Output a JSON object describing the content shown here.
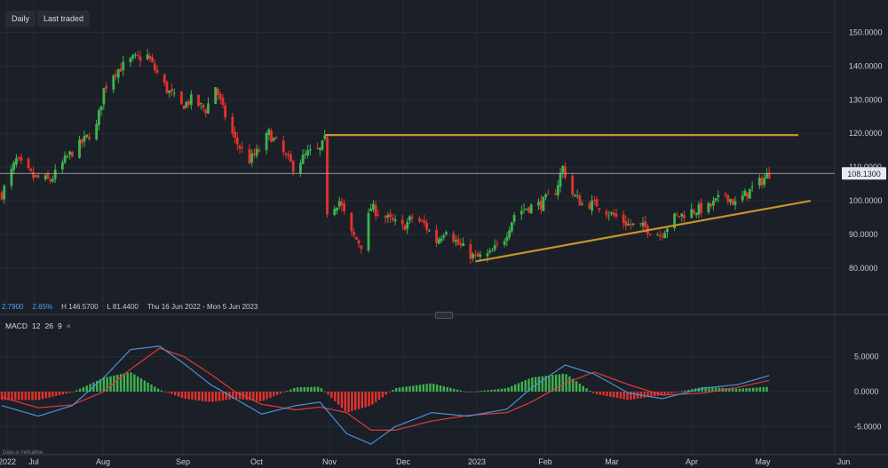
{
  "toolbar": {
    "interval": "Daily",
    "price_mode": "Last traded"
  },
  "info": {
    "change": "2.7900",
    "change_pct": "2.65%",
    "high": "H 146.5700",
    "low": "L 81.4400",
    "range": "Thu 16 Jun 2022 - Mon 5 Jun 2023"
  },
  "macd": {
    "label": "MACD",
    "fast": "12",
    "slow": "26",
    "signal": "9"
  },
  "disclaimer": "Data is indicative",
  "colors": {
    "background": "#1b1f27",
    "up": "#3fb34f",
    "down": "#e5322d",
    "trendline": "#c8922c",
    "macd_line": "#4a90d9",
    "signal_line": "#e0393e"
  },
  "chart_data": [
    {
      "type": "candlestick",
      "title": "",
      "x_ticks": [
        "2022",
        "Jul",
        "Aug",
        "Sep",
        "Oct",
        "Nov",
        "Dec",
        "2023",
        "Feb",
        "Mar",
        "Apr",
        "May",
        "Jun"
      ],
      "y_ticks": [
        "150.0000",
        "140.0000",
        "130.0000",
        "120.0000",
        "110.0000",
        "100.0000",
        "90.0000",
        "80.0000"
      ],
      "ylim": [
        70,
        158
      ],
      "last_price": "108.1300",
      "high": 146.57,
      "low": 81.44,
      "close_path": [
        [
          "2022-06-16",
          102
        ],
        [
          "2022-06-22",
          112
        ],
        [
          "2022-06-29",
          107
        ],
        [
          "2022-07-06",
          106
        ],
        [
          "2022-07-13",
          113
        ],
        [
          "2022-07-20",
          118
        ],
        [
          "2022-07-25",
          122
        ],
        [
          "2022-07-28",
          133
        ],
        [
          "2022-08-01",
          138
        ],
        [
          "2022-08-05",
          140
        ],
        [
          "2022-08-09",
          142
        ],
        [
          "2022-08-15",
          143
        ],
        [
          "2022-08-18",
          139
        ],
        [
          "2022-08-23",
          133
        ],
        [
          "2022-08-29",
          128
        ],
        [
          "2022-09-02",
          130
        ],
        [
          "2022-09-08",
          127
        ],
        [
          "2022-09-12",
          134
        ],
        [
          "2022-09-15",
          127
        ],
        [
          "2022-09-20",
          118
        ],
        [
          "2022-09-26",
          112
        ],
        [
          "2022-09-30",
          115
        ],
        [
          "2022-10-04",
          120
        ],
        [
          "2022-10-10",
          114
        ],
        [
          "2022-10-14",
          110
        ],
        [
          "2022-10-20",
          114
        ],
        [
          "2022-10-25",
          115
        ],
        [
          "2022-10-27",
          118
        ],
        [
          "2022-10-28",
          97
        ],
        [
          "2022-11-02",
          100
        ],
        [
          "2022-11-07",
          90
        ],
        [
          "2022-11-11",
          87
        ],
        [
          "2022-11-15",
          98
        ],
        [
          "2022-11-21",
          95
        ],
        [
          "2022-11-28",
          92
        ],
        [
          "2022-12-02",
          95
        ],
        [
          "2022-12-07",
          93
        ],
        [
          "2022-12-12",
          88
        ],
        [
          "2022-12-16",
          92
        ],
        [
          "2022-12-21",
          87
        ],
        [
          "2022-12-28",
          83
        ],
        [
          "2023-01-03",
          84
        ],
        [
          "2023-01-09",
          89
        ],
        [
          "2023-01-13",
          96
        ],
        [
          "2023-01-18",
          98
        ],
        [
          "2023-01-24",
          99
        ],
        [
          "2023-01-30",
          103
        ],
        [
          "2023-02-02",
          110
        ],
        [
          "2023-02-06",
          102
        ],
        [
          "2023-02-10",
          99
        ],
        [
          "2023-02-16",
          99
        ],
        [
          "2023-02-22",
          96
        ],
        [
          "2023-03-01",
          93
        ],
        [
          "2023-03-08",
          92
        ],
        [
          "2023-03-14",
          90
        ],
        [
          "2023-03-20",
          95
        ],
        [
          "2023-03-27",
          97
        ],
        [
          "2023-04-03",
          98
        ],
        [
          "2023-04-10",
          102
        ],
        [
          "2023-04-14",
          99
        ],
        [
          "2023-04-20",
          103
        ],
        [
          "2023-04-25",
          106
        ],
        [
          "2023-04-28",
          108.13
        ]
      ],
      "annotations": [
        {
          "kind": "horizontal resistance",
          "from": "2022-10-27",
          "to": "2023-05-10",
          "value": 119.5
        },
        {
          "kind": "rising support",
          "from": "2022-12-28",
          "to": "2023-05-15",
          "start_value": 82,
          "end_value": 100
        }
      ]
    },
    {
      "type": "macd",
      "title": "",
      "x_ticks": [
        "2022",
        "Jul",
        "Aug",
        "Sep",
        "Oct",
        "Nov",
        "Dec",
        "2023",
        "Feb",
        "Mar",
        "Apr",
        "May",
        "Jun"
      ],
      "y_ticks": [
        "5.0000",
        "0.0000",
        "-5.0000"
      ],
      "ylim": [
        -8.5,
        8.5
      ],
      "series": [
        {
          "points": [
            [
              "2022-06-16",
              -2.0
            ],
            [
              "2022-07-01",
              -3.5
            ],
            [
              "2022-07-15",
              -2.0
            ],
            [
              "2022-07-28",
              2.0
            ],
            [
              "2022-08-08",
              6.0
            ],
            [
              "2022-08-20",
              6.5
            ],
            [
              "2022-08-30",
              4.0
            ],
            [
              "2022-09-10",
              1.0
            ],
            [
              "2022-09-20",
              -1.0
            ],
            [
              "2022-10-01",
              -3.2
            ],
            [
              "2022-10-15",
              -2.0
            ],
            [
              "2022-10-25",
              -1.5
            ],
            [
              "2022-11-05",
              -6.0
            ],
            [
              "2022-11-15",
              -7.5
            ],
            [
              "2022-11-25",
              -5.0
            ],
            [
              "2022-12-10",
              -3.0
            ],
            [
              "2022-12-25",
              -3.5
            ],
            [
              "2023-01-10",
              -2.5
            ],
            [
              "2023-01-20",
              0.5
            ],
            [
              "2023-02-03",
              3.8
            ],
            [
              "2023-02-15",
              2.5
            ],
            [
              "2023-03-01",
              -0.2
            ],
            [
              "2023-03-15",
              -1.0
            ],
            [
              "2023-04-01",
              0.5
            ],
            [
              "2023-04-15",
              1.0
            ],
            [
              "2023-04-28",
              2.3
            ]
          ]
        },
        {
          "points": [
            [
              "2022-06-16",
              -0.8
            ],
            [
              "2022-07-01",
              -2.3
            ],
            [
              "2022-07-15",
              -1.9
            ],
            [
              "2022-07-28",
              0.0
            ],
            [
              "2022-08-08",
              3.2
            ],
            [
              "2022-08-20",
              6.2
            ],
            [
              "2022-08-30",
              5.0
            ],
            [
              "2022-09-10",
              2.5
            ],
            [
              "2022-09-20",
              0.0
            ],
            [
              "2022-10-01",
              -1.8
            ],
            [
              "2022-10-15",
              -2.6
            ],
            [
              "2022-10-25",
              -2.2
            ],
            [
              "2022-11-05",
              -3.0
            ],
            [
              "2022-11-15",
              -5.5
            ],
            [
              "2022-11-25",
              -5.5
            ],
            [
              "2022-12-10",
              -4.2
            ],
            [
              "2022-12-25",
              -3.4
            ],
            [
              "2023-01-10",
              -3.0
            ],
            [
              "2023-01-20",
              -1.5
            ],
            [
              "2023-02-03",
              1.2
            ],
            [
              "2023-02-15",
              2.8
            ],
            [
              "2023-03-01",
              1.0
            ],
            [
              "2023-03-15",
              -0.5
            ],
            [
              "2023-04-01",
              -0.2
            ],
            [
              "2023-04-15",
              0.6
            ],
            [
              "2023-04-28",
              1.6
            ]
          ]
        }
      ]
    }
  ]
}
